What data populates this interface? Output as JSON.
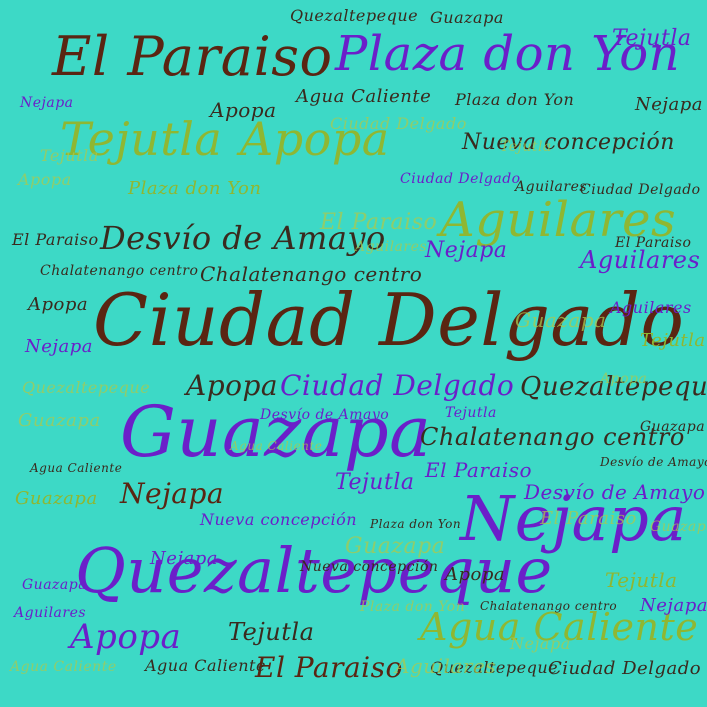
{
  "palette": {
    "background": "#3dd9c6",
    "brown": "#5a2512",
    "purple": "#6b1fc9",
    "olive": "#8fb732",
    "olive_faint": "#a9c94f",
    "dark": "#3a2a1e"
  },
  "words": [
    {
      "text": "Ciudad Delgado",
      "weight": 1.0
    },
    {
      "text": "Quezaltepeque",
      "weight": 0.9
    },
    {
      "text": "Guazapa",
      "weight": 0.85
    },
    {
      "text": "Nejapa",
      "weight": 0.8
    },
    {
      "text": "El Paraiso",
      "weight": 0.75
    },
    {
      "text": "Plaza don Yon",
      "weight": 0.7
    },
    {
      "text": "Tejutla",
      "weight": 0.68
    },
    {
      "text": "Apopa",
      "weight": 0.68
    },
    {
      "text": "Aguilares",
      "weight": 0.6
    },
    {
      "text": "Agua Caliente",
      "weight": 0.55
    },
    {
      "text": "Desvío de Amayo",
      "weight": 0.45
    },
    {
      "text": "Chalatenango centro",
      "weight": 0.4
    },
    {
      "text": "Nueva concepción",
      "weight": 0.35
    }
  ]
}
